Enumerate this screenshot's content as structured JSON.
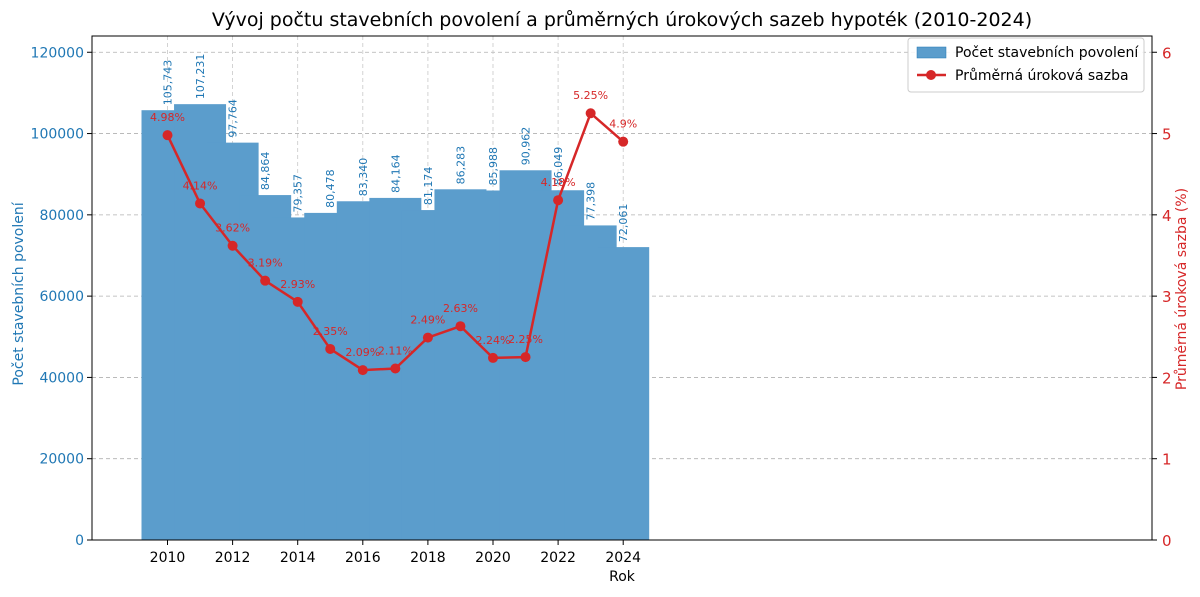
{
  "chart_data": {
    "type": "bar+line",
    "title": "Vývoj počtu stavebních povolení a průměrných úrokových sazeb hypoték (2010-2024)",
    "xlabel": "Rok",
    "ylabel_left": "Počet stavebních povolení",
    "ylabel_right": "Průměrná úroková sazba (%)",
    "x": [
      2010,
      2011,
      2012,
      2013,
      2014,
      2015,
      2016,
      2017,
      2018,
      2019,
      2020,
      2021,
      2022,
      2023,
      2024
    ],
    "x_ticks": [
      "2010",
      "2012",
      "2014",
      "2016",
      "2018",
      "2020",
      "2022",
      "2024"
    ],
    "y_left_ticks": [
      "0",
      "20000",
      "40000",
      "60000",
      "80000",
      "100000",
      "120000"
    ],
    "y_right_ticks": [
      "0",
      "1",
      "2",
      "3",
      "4",
      "5",
      "6"
    ],
    "ylim_left": [
      0,
      124000
    ],
    "ylim_right": [
      0,
      6.2
    ],
    "grid": true,
    "legend_position": "top-right",
    "colors": {
      "bars": "#5b9dcc",
      "bar_text": "#1f77b4",
      "line": "#d62728",
      "left_axis": "#1f77b4",
      "right_axis": "#d62728"
    },
    "series": [
      {
        "name": "Počet stavebních povolení",
        "kind": "bar",
        "axis": "left",
        "values": [
          105743,
          107231,
          97764,
          84864,
          79357,
          80478,
          83340,
          84164,
          81174,
          86283,
          85988,
          90962,
          86049,
          77398,
          72061
        ],
        "labels": [
          "105,743",
          "107,231",
          "97,764",
          "84,864",
          "79,357",
          "80,478",
          "83,340",
          "84,164",
          "81,174",
          "86,283",
          "85,988",
          "90,962",
          "86,049",
          "77,398",
          "72,061"
        ]
      },
      {
        "name": "Průměrná úroková sazba",
        "kind": "line",
        "axis": "right",
        "values": [
          4.98,
          4.14,
          3.62,
          3.19,
          2.93,
          2.35,
          2.09,
          2.11,
          2.49,
          2.63,
          2.24,
          2.25,
          4.18,
          5.25,
          4.9
        ],
        "labels": [
          "4.98%",
          "4.14%",
          "3.62%",
          "3.19%",
          "2.93%",
          "2.35%",
          "2.09%",
          "2.11%",
          "2.49%",
          "2.63%",
          "2.24%",
          "2.25%",
          "4.18%",
          "5.25%",
          "4.9%"
        ]
      }
    ]
  }
}
